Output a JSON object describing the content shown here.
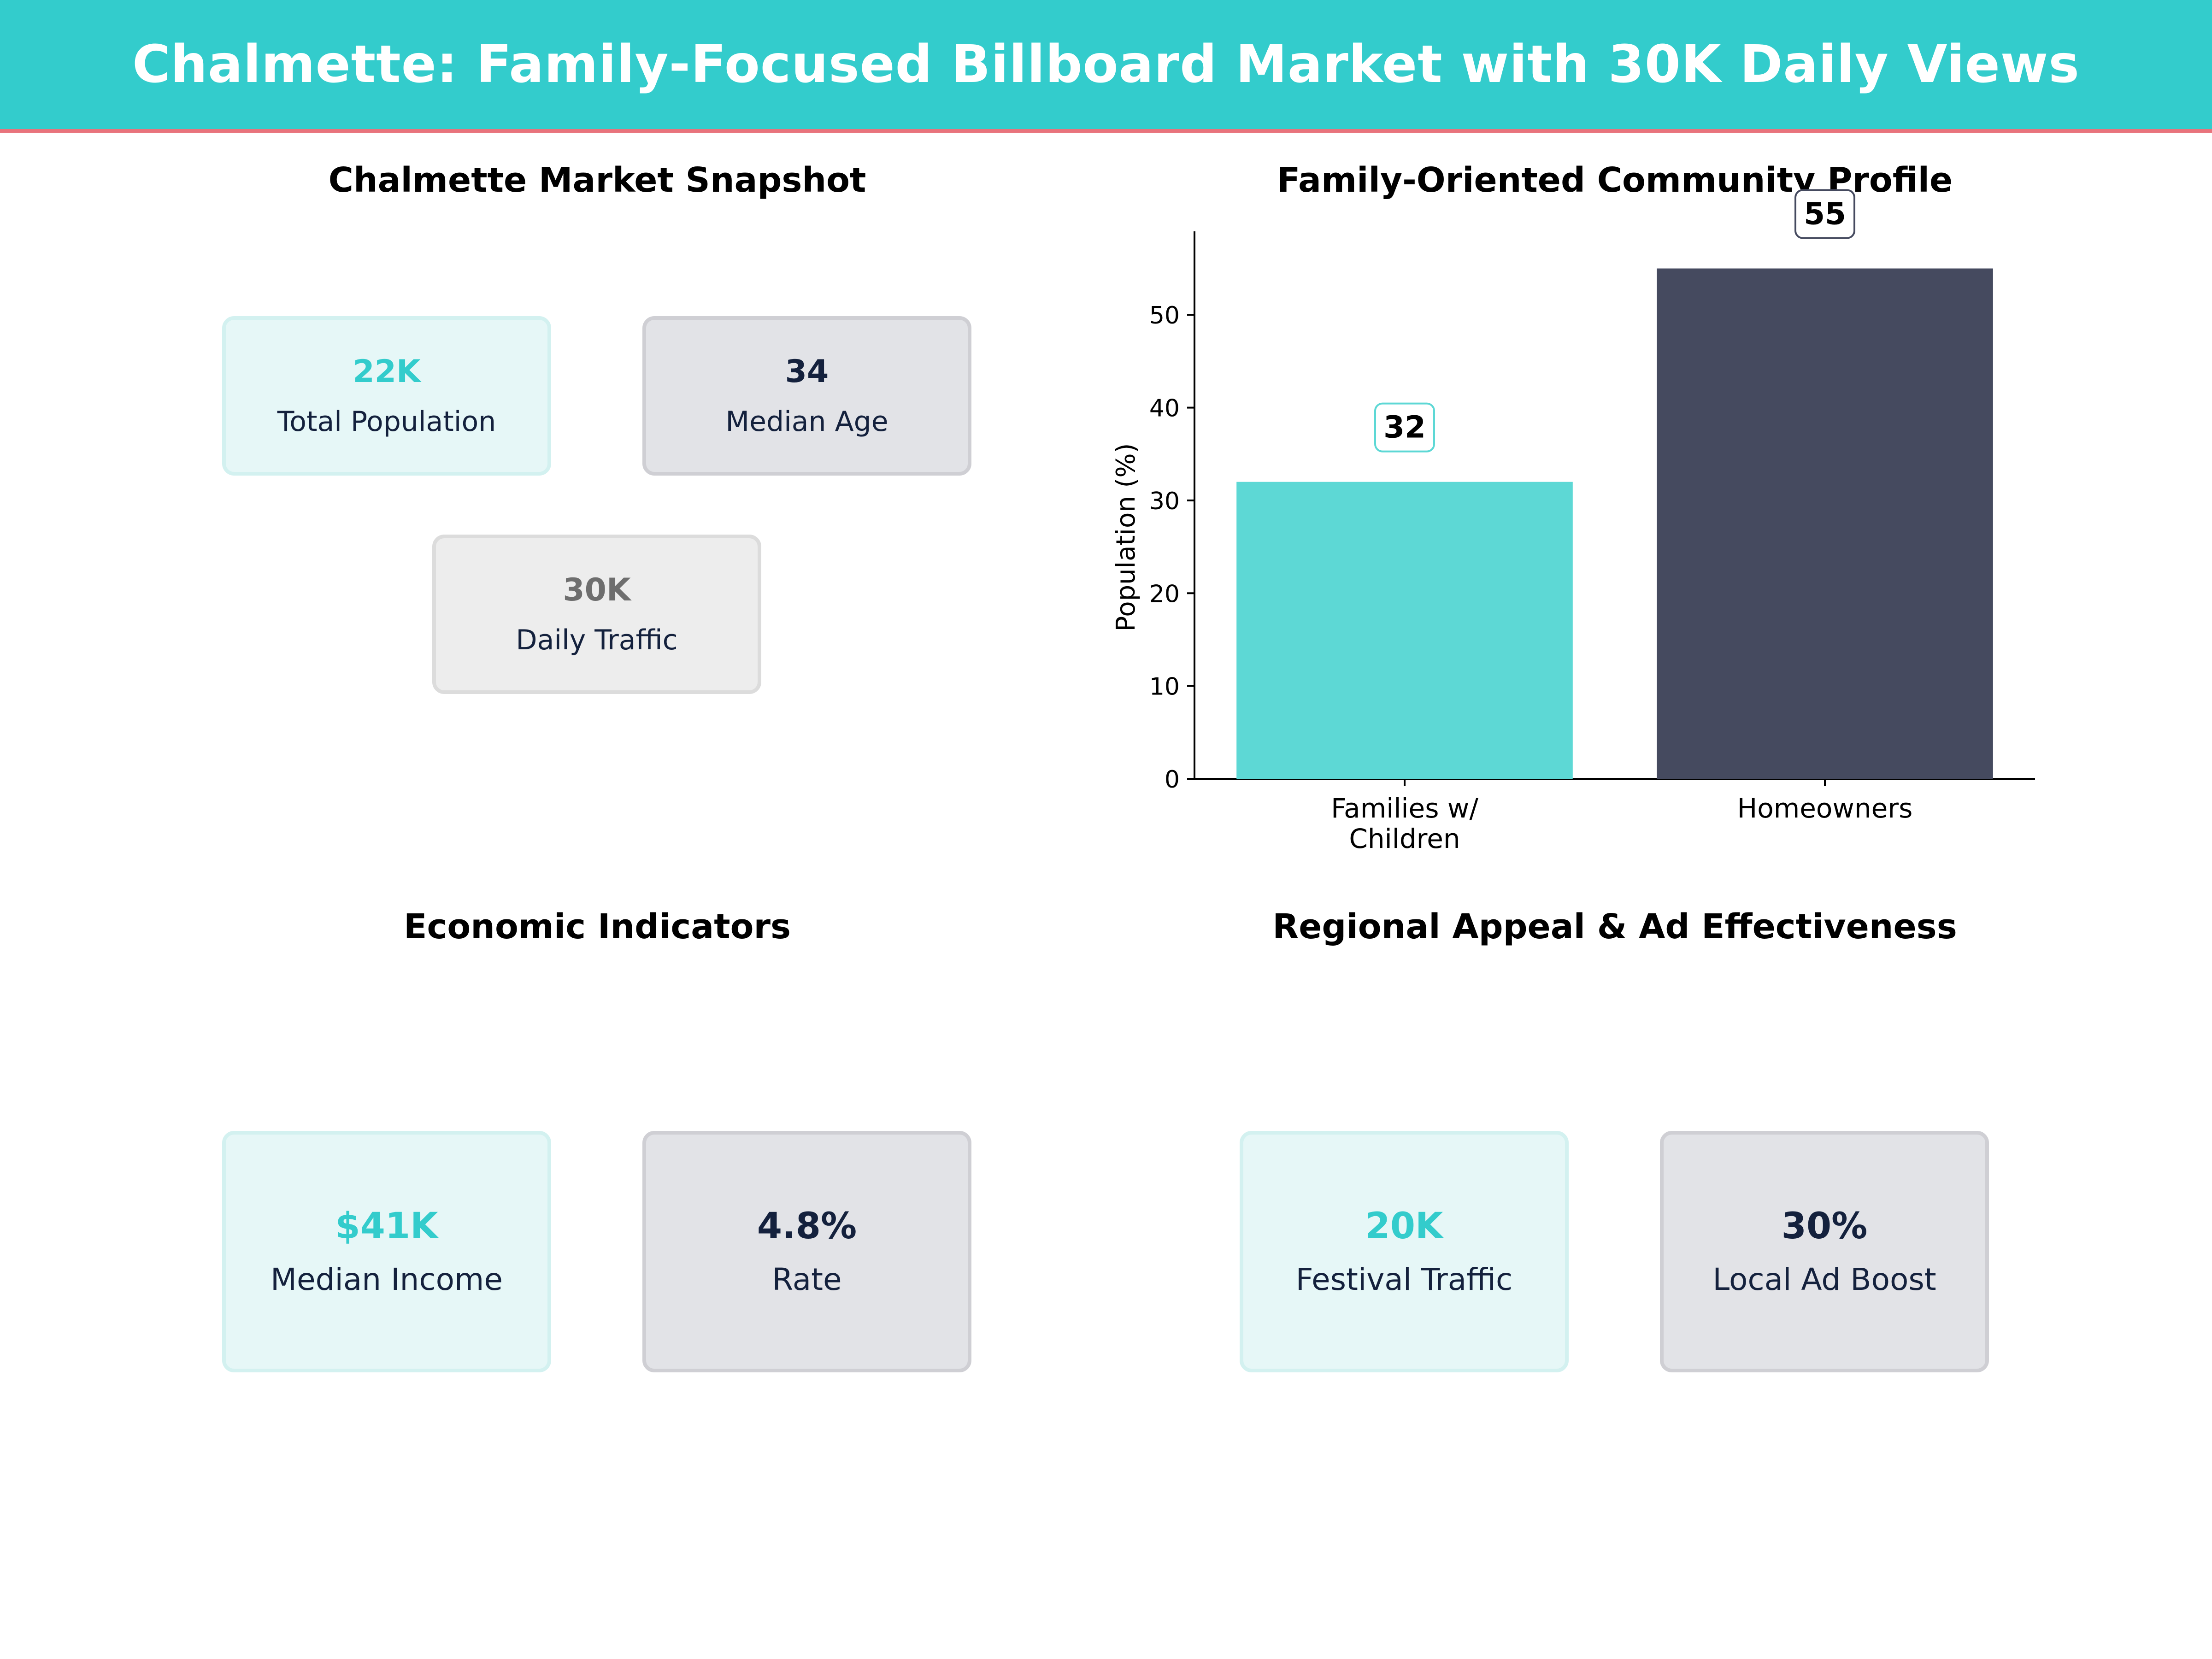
{
  "header": {
    "title": "Chalmette: Family-Focused Billboard Market with 30K Daily Views"
  },
  "colors": {
    "header_bg": "#33cccc",
    "header_rule": "#e8737c",
    "teal": "#5dd8d5",
    "navy": "#454a5f"
  },
  "snapshot": {
    "title": "Chalmette Market Snapshot",
    "cards": [
      {
        "value": "22K",
        "label": "Total Population"
      },
      {
        "value": "34",
        "label": "Median Age"
      },
      {
        "value": "30K",
        "label": "Daily Traffic"
      }
    ]
  },
  "economic": {
    "title": "Economic Indicators",
    "cards": [
      {
        "value": "$41K",
        "label": "Median Income"
      },
      {
        "value": "4.8%",
        "label": "Rate"
      }
    ]
  },
  "regional": {
    "title": "Regional Appeal & Ad Effectiveness",
    "cards": [
      {
        "value": "20K",
        "label": "Festival Traffic"
      },
      {
        "value": "30%",
        "label": "Local Ad Boost"
      }
    ]
  },
  "chart_data": {
    "type": "bar",
    "title": "Family-Oriented Community Profile",
    "categories": [
      "Families w/\nChildren",
      "Homeowners"
    ],
    "values": [
      32,
      55
    ],
    "data_labels": [
      "32",
      "55"
    ],
    "ylabel": "Population (%)",
    "xlabel": "",
    "ylim": [
      0,
      59
    ],
    "yticks": [
      0,
      10,
      20,
      30,
      40,
      50
    ],
    "grid": false,
    "bar_colors": [
      "#5dd8d5",
      "#454a5f"
    ],
    "label_box_edges": [
      "#5dd8d5",
      "#454a5f"
    ]
  }
}
